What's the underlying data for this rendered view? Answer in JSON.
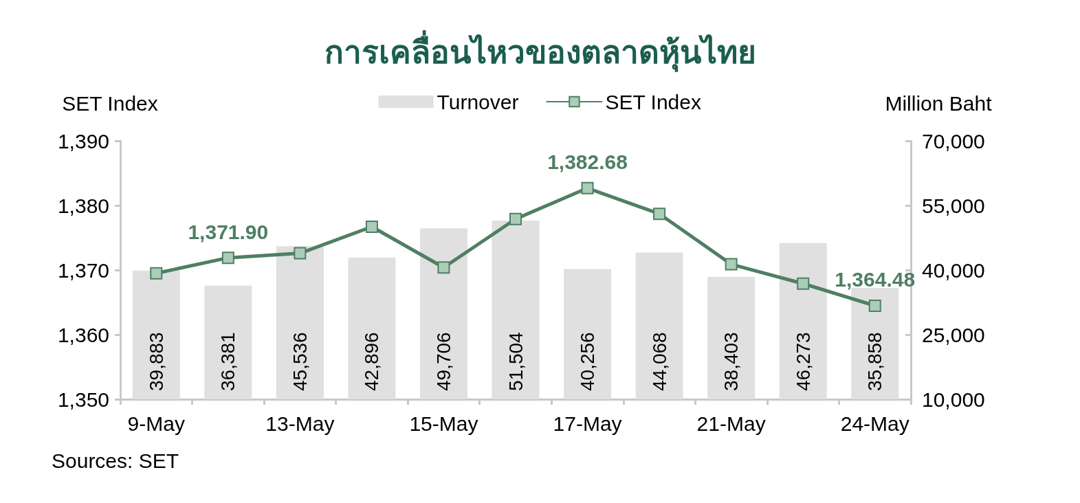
{
  "chart_data": {
    "type": "bar",
    "title": "การเคลื่อนไหวของตลาดหุ้นไทย",
    "categories": [
      "9-May",
      null,
      "13-May",
      null,
      "15-May",
      null,
      "17-May",
      null,
      "21-May",
      null,
      "24-May"
    ],
    "series": [
      {
        "name": "Turnover",
        "axis": "y2",
        "color": "#e0e0e0",
        "values": [
          39883,
          36381,
          45536,
          42896,
          49706,
          51504,
          40256,
          44068,
          38403,
          46273,
          35858
        ],
        "value_labels": [
          "39,883",
          "36,381",
          "45,536",
          "42,896",
          "49,706",
          "51,504",
          "40,256",
          "44,068",
          "38,403",
          "46,273",
          "35,858"
        ]
      },
      {
        "name": "SET Index",
        "type": "line",
        "color": "#4f7f63",
        "values": [
          1369.5,
          1371.9,
          1372.6,
          1376.7,
          1370.4,
          1377.9,
          1382.68,
          1378.7,
          1370.9,
          1367.9,
          1364.48
        ],
        "value_labels": [
          null,
          "1,371.90",
          null,
          null,
          null,
          null,
          "1,382.68",
          null,
          null,
          null,
          "1,364.48"
        ]
      }
    ],
    "ylabel": "SET Index",
    "y2label": "Million Baht",
    "ylim": [
      1350,
      1390
    ],
    "yticks": [
      {
        "value": 1350,
        "label": "1,350"
      },
      {
        "value": 1360,
        "label": "1,360"
      },
      {
        "value": 1370,
        "label": "1,370"
      },
      {
        "value": 1380,
        "label": "1,380"
      },
      {
        "value": 1390,
        "label": "1,390"
      }
    ],
    "y2lim": [
      10000,
      70000
    ],
    "y2ticks": [
      {
        "value": 10000,
        "label": "10,000"
      },
      {
        "value": 25000,
        "label": "25,000"
      },
      {
        "value": 40000,
        "label": "40,000"
      },
      {
        "value": 55000,
        "label": "55,000"
      },
      {
        "value": 70000,
        "label": "70,000"
      }
    ],
    "marker": "square",
    "line_style": "solid",
    "legend": "top",
    "annotations": [
      "Sources: SET"
    ]
  }
}
